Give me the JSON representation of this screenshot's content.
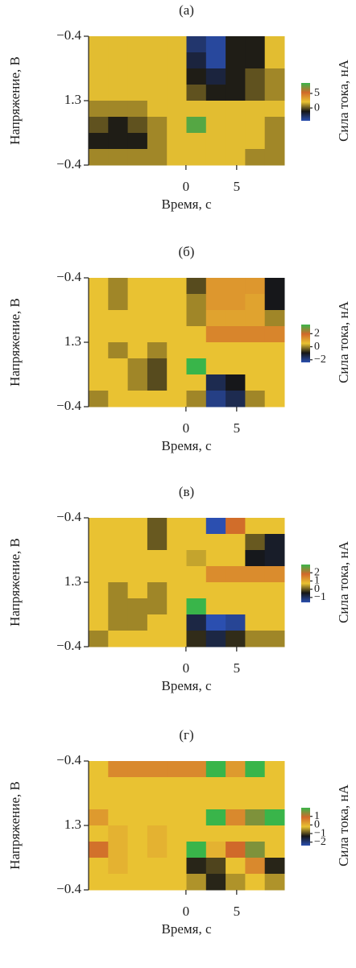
{
  "chart_data": [
    {
      "type": "heatmap",
      "title": "(а)",
      "y_label": "Напряжение, В",
      "x_label": "Время, с",
      "colorbar_label": "Сила тока, нА",
      "ylabels": [
        "−0.4",
        "1.3",
        "−0.4"
      ],
      "xlim": [
        -9.6,
        9.7
      ],
      "xticks": [
        0,
        5
      ],
      "clim": [
        -4.4,
        8.6
      ],
      "cticks": [
        5,
        0
      ],
      "colors": [
        "#2b4fb0",
        "#151515",
        "#e9c232",
        "#d0692a",
        "#39b54a"
      ],
      "z": [
        [
          2,
          2,
          2,
          2,
          2,
          -3,
          -4,
          -1,
          -1,
          2
        ],
        [
          2,
          2,
          2,
          2,
          2,
          -2,
          -4,
          -1,
          -1,
          2
        ],
        [
          2,
          2,
          2,
          2,
          2,
          -1,
          -2,
          -1,
          0,
          1
        ],
        [
          2,
          2,
          2,
          2,
          2,
          0,
          -1,
          -1,
          0,
          1
        ],
        [
          1,
          1,
          1,
          2,
          2,
          2,
          2,
          2,
          2,
          2
        ],
        [
          0,
          -1,
          0,
          1,
          2,
          8,
          2,
          2,
          2,
          1
        ],
        [
          -1,
          -1,
          -1,
          1,
          2,
          2,
          2,
          2,
          2,
          1
        ],
        [
          1,
          1,
          1,
          1,
          2,
          2,
          2,
          2,
          1,
          1
        ]
      ]
    },
    {
      "type": "heatmap",
      "title": "(б)",
      "y_label": "Напряжение, В",
      "x_label": "Время, с",
      "colorbar_label": "Сила тока, нА",
      "ylabels": [
        "−0.4",
        "1.3",
        "−0.4"
      ],
      "xlim": [
        -9.6,
        9.7
      ],
      "xticks": [
        0,
        5
      ],
      "clim": [
        -2.4,
        3.4
      ],
      "cticks": [
        2,
        0,
        {
          "value": -2,
          "label": "−2"
        }
      ],
      "colors": [
        "#2b4fb0",
        "#151515",
        "#e9c232",
        "#d0692a",
        "#39b54a"
      ],
      "z": [
        [
          0.5,
          0,
          0.5,
          0.5,
          0.5,
          -0.5,
          1.2,
          1.2,
          1.2,
          -1
        ],
        [
          0.5,
          0,
          0.5,
          0.5,
          0.5,
          0,
          1.2,
          1.2,
          1,
          -1
        ],
        [
          0.5,
          0.5,
          0.5,
          0.5,
          0.5,
          0,
          1,
          1,
          1,
          0
        ],
        [
          0.5,
          0.5,
          0.5,
          0.5,
          0.5,
          0.5,
          1.5,
          1.5,
          1.5,
          1.5
        ],
        [
          0.5,
          0,
          0.5,
          0,
          0.5,
          0.5,
          0.5,
          0.5,
          0.5,
          0.5
        ],
        [
          0.5,
          0.5,
          0,
          -0.5,
          0.5,
          3.4,
          0.5,
          0.5,
          0.5,
          0.5
        ],
        [
          0.5,
          0.5,
          0,
          -0.5,
          0.5,
          0.5,
          -1.5,
          -1,
          0.5,
          0.5
        ],
        [
          0,
          0.5,
          0.5,
          0.5,
          0.5,
          0,
          -2,
          -1.5,
          0,
          0.5
        ]
      ]
    },
    {
      "type": "heatmap",
      "title": "(в)",
      "y_label": "Напряжение, В",
      "x_label": "Время, с",
      "colorbar_label": "Сила тока, нА",
      "ylabels": [
        "−0.4",
        "1.3",
        "−0.4"
      ],
      "xlim": [
        -9.6,
        9.7
      ],
      "xticks": [
        0,
        5
      ],
      "clim": [
        -1.6,
        3
      ],
      "cticks": [
        2,
        1,
        0,
        {
          "value": -1,
          "label": "−1"
        }
      ],
      "colors": [
        "#2b4fb0",
        "#151515",
        "#e9c232",
        "#d0692a",
        "#39b54a"
      ],
      "z": [
        [
          0.7,
          0.7,
          0.7,
          0,
          0.7,
          0.7,
          -1.6,
          1.8,
          0.7,
          0.7
        ],
        [
          0.7,
          0.7,
          0.7,
          0,
          0.7,
          0.7,
          0.7,
          0.7,
          0,
          -0.6
        ],
        [
          0.7,
          0.7,
          0.7,
          0.7,
          0.7,
          0.5,
          0.7,
          0.7,
          -0.5,
          -0.6
        ],
        [
          0.7,
          0.7,
          0.7,
          0.7,
          0.7,
          0.7,
          1.4,
          1.4,
          1.4,
          1.4
        ],
        [
          0.7,
          0.3,
          0.7,
          0.3,
          0.7,
          0.7,
          0.7,
          0.7,
          0.7,
          0.7
        ],
        [
          0.7,
          0.3,
          0.3,
          0.3,
          0.7,
          3,
          0.7,
          0.7,
          0.7,
          0.7
        ],
        [
          0.7,
          0.3,
          0.3,
          0.7,
          0.7,
          -0.8,
          -1.6,
          -1.4,
          0.7,
          0.7
        ],
        [
          0.3,
          0.7,
          0.7,
          0.7,
          0.7,
          -0.3,
          -0.8,
          -0.3,
          0.3,
          0.3
        ]
      ]
    },
    {
      "type": "heatmap",
      "title": "(г)",
      "y_label": "Напряжение, В",
      "x_label": "Время, с",
      "colorbar_label": "Сила тока, нА",
      "ylabels": [
        "−0.4",
        "1.3",
        "−0.4"
      ],
      "xlim": [
        -9.6,
        9.7
      ],
      "xticks": [
        0,
        5
      ],
      "clim": [
        -2.4,
        2
      ],
      "cticks": [
        1,
        0,
        {
          "value": -1,
          "label": "−1"
        },
        {
          "value": -2,
          "label": "−2"
        }
      ],
      "colors": [
        "#2b4fb0",
        "#151515",
        "#e9c232",
        "#d0692a",
        "#39b54a"
      ],
      "z": [
        [
          -0.2,
          0.5,
          0.5,
          0.5,
          0.5,
          0.5,
          2,
          0.3,
          2,
          -0.2
        ],
        [
          -0.2,
          -0.2,
          -0.2,
          -0.2,
          -0.2,
          -0.2,
          -0.2,
          -0.2,
          -0.2,
          -0.2
        ],
        [
          -0.2,
          -0.2,
          -0.2,
          -0.2,
          -0.2,
          -0.2,
          -0.2,
          -0.2,
          -0.2,
          -0.2
        ],
        [
          0.3,
          -0.2,
          -0.2,
          -0.2,
          -0.2,
          -0.2,
          2,
          0.5,
          1.5,
          2
        ],
        [
          -0.2,
          0,
          -0.2,
          0,
          -0.2,
          -0.2,
          -0.2,
          -0.2,
          -0.2,
          -0.2
        ],
        [
          0.8,
          0,
          -0.2,
          0,
          -0.2,
          2,
          0,
          0.9,
          1.5,
          -0.2
        ],
        [
          -0.2,
          0,
          -0.2,
          -0.2,
          -0.2,
          -1.2,
          -1,
          -0.2,
          0.5,
          -1.2
        ],
        [
          -0.2,
          -0.2,
          -0.2,
          -0.2,
          -0.2,
          -0.5,
          -1.2,
          -0.5,
          -0.2,
          -0.5
        ]
      ]
    }
  ]
}
